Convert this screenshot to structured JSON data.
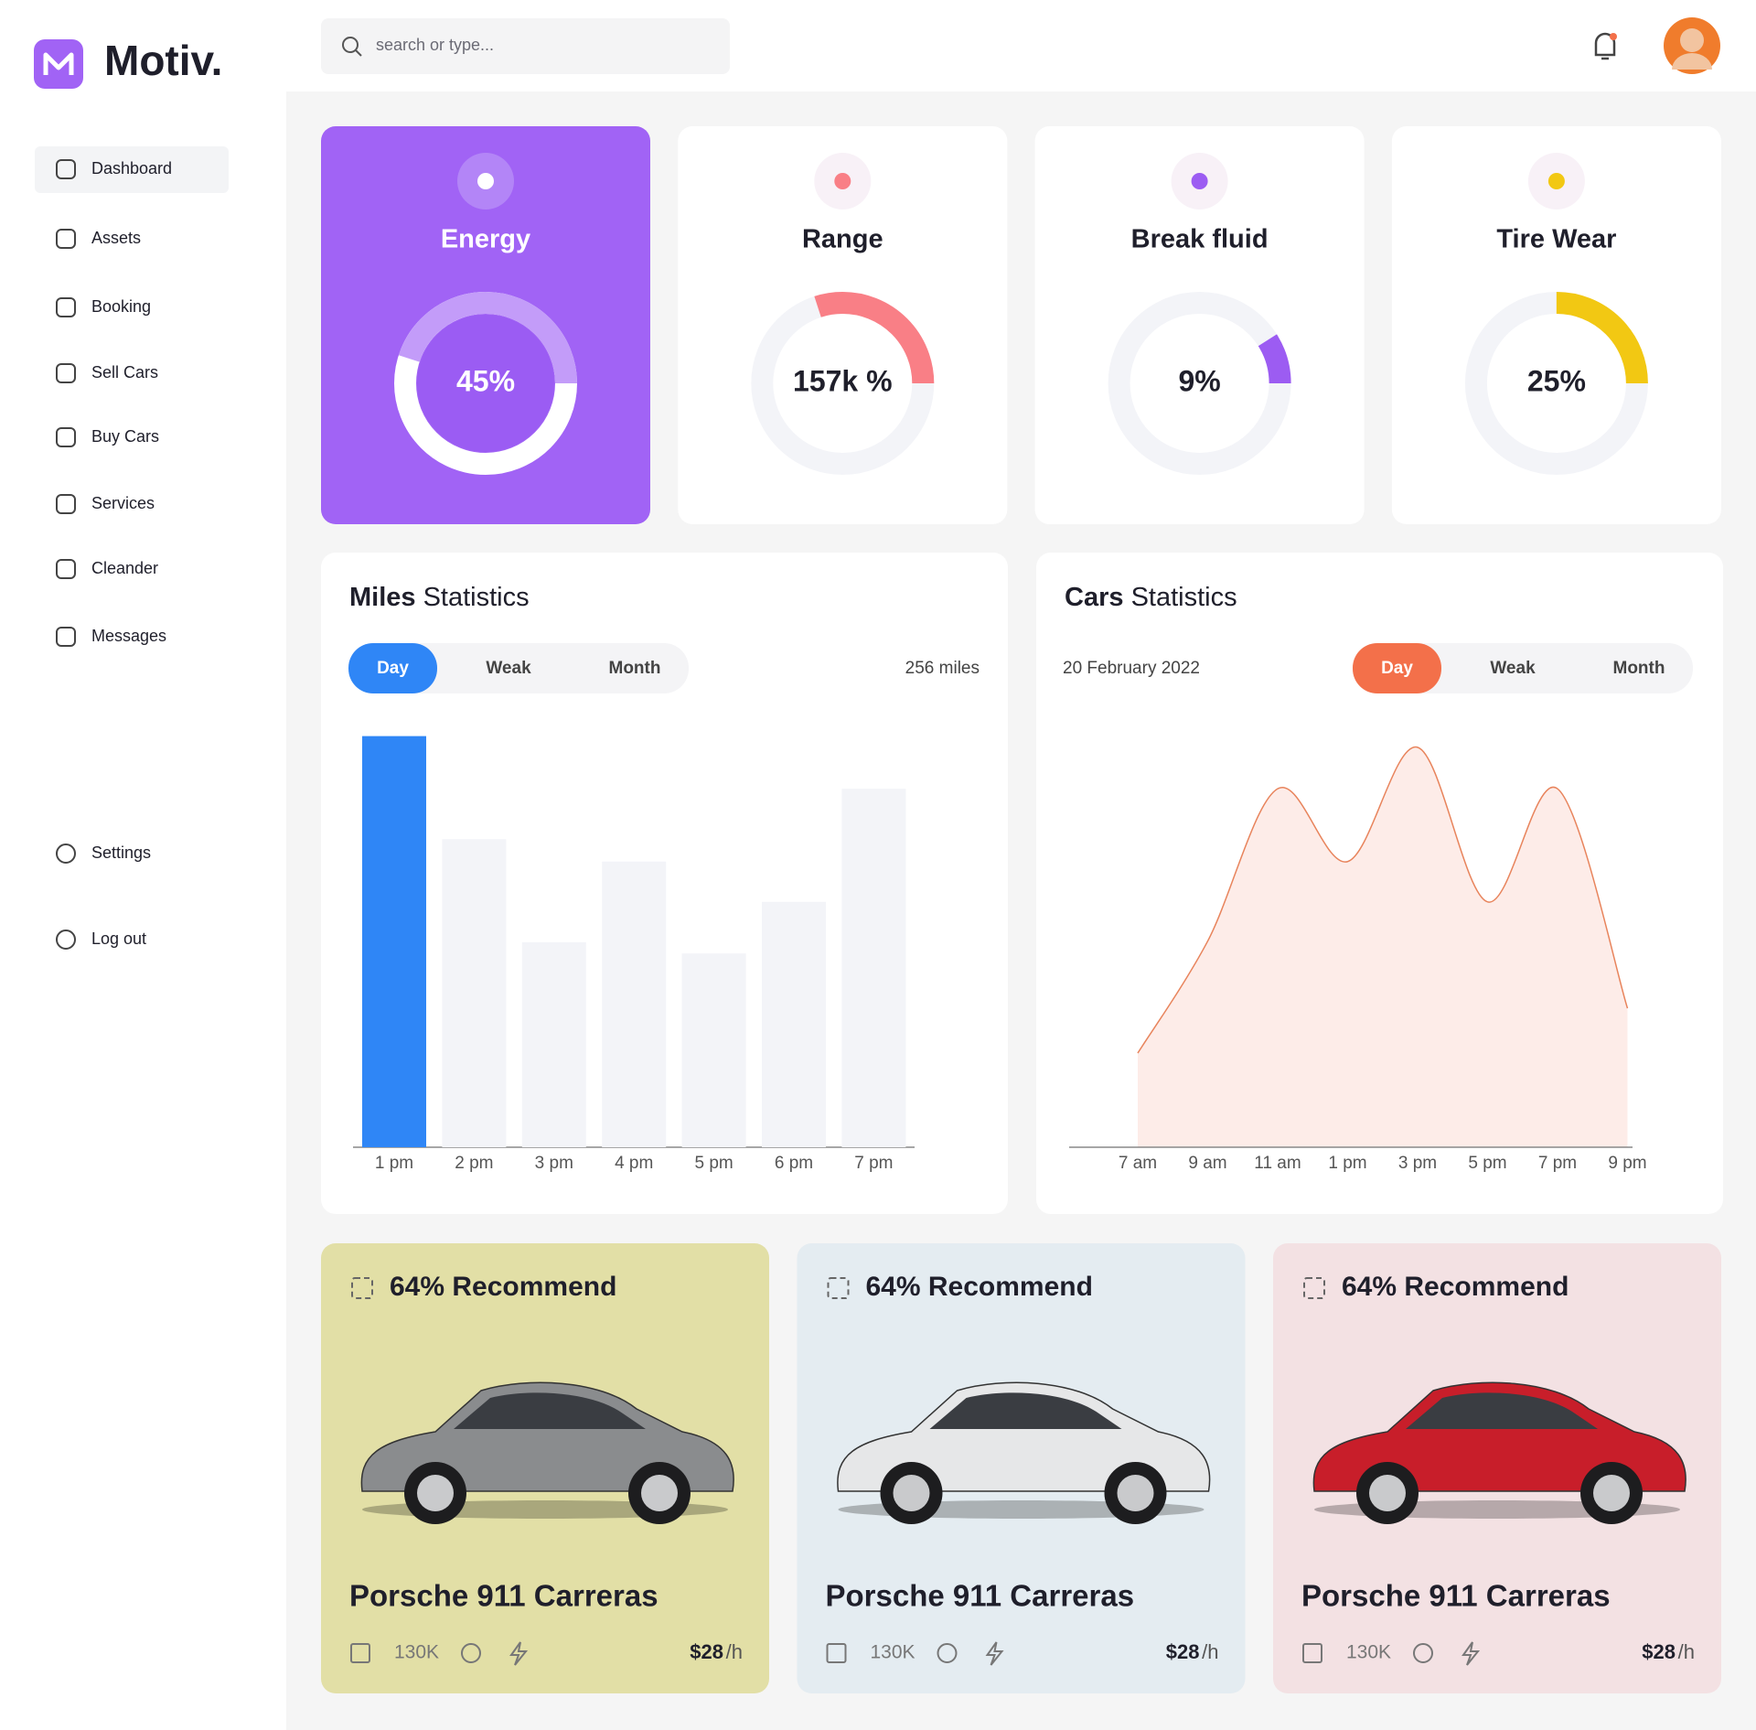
{
  "brand": "Motiv.",
  "search_placeholder": "search or type...",
  "nav": [
    "Dashboard",
    "Assets",
    "Booking",
    "Sell Cars",
    "Buy Cars",
    "Services",
    "Cleander",
    "Messages"
  ],
  "nav_bottom": [
    "Settings",
    "Log out"
  ],
  "gauges": [
    {
      "title": "Energy",
      "label": "45%",
      "ring": 45,
      "accent": "#ffffff"
    },
    {
      "title": "Range",
      "label": "157k %",
      "ring": 30,
      "accent": "#f97f86"
    },
    {
      "title": "Break fluid",
      "label": "9%",
      "ring": 9,
      "accent": "#9c5cf2"
    },
    {
      "title": "Tire Wear",
      "label": "25%",
      "ring": 25,
      "accent": "#f2c813"
    }
  ],
  "miles_statistics": {
    "title_bold": "Miles",
    "title_rest": "Statistics",
    "tabs": [
      "Day",
      "Weak",
      "Month"
    ],
    "active_color": "#2f86f6",
    "total": "256 miles",
    "chart_data": {
      "type": "bar",
      "categories": [
        "1 pm",
        "2 pm",
        "3 pm",
        "4 pm",
        "5 pm",
        "6 pm",
        "7 pm"
      ],
      "values": [
        367,
        275,
        183,
        255,
        173,
        219,
        320
      ],
      "colors": [
        "#2f86f6",
        "#f3f4f8",
        "#f3f4f8",
        "#f3f4f8",
        "#f3f4f8",
        "#f3f4f8",
        "#f3f4f8"
      ]
    }
  },
  "cars_statistics": {
    "title_bold": "Cars",
    "title_rest": "Statistics",
    "date": "20 February 2022",
    "tabs": [
      "Day",
      "Weak",
      "Month"
    ],
    "active_color": "#f3704a",
    "chart_data": {
      "type": "area",
      "categories": [
        "7 am",
        "9 am",
        "11 am",
        "1 pm",
        "3 pm",
        "5 pm",
        "7 pm",
        "9 pm"
      ],
      "values": [
        84,
        184,
        320,
        255,
        357,
        219,
        320,
        124
      ],
      "color": "#e8845c",
      "fill": "#fdece8"
    }
  },
  "cars": [
    {
      "recommend": "64% Recommend",
      "name": "Porsche 911 Carreras",
      "mileage": "130K",
      "price": "$28",
      "unit": "/h",
      "background": "#e2dfa6",
      "car_color": "#8a8c8e"
    },
    {
      "recommend": "64% Recommend",
      "name": "Porsche 911 Carreras",
      "mileage": "130K",
      "price": "$28",
      "unit": "/h",
      "background": "#e4ecf1",
      "car_color": "#e6e7e8"
    },
    {
      "recommend": "64% Recommend",
      "name": "Porsche 911 Carreras",
      "mileage": "130K",
      "price": "$28",
      "unit": "/h",
      "background": "#f3e1e3",
      "car_color": "#c81e2a"
    }
  ]
}
